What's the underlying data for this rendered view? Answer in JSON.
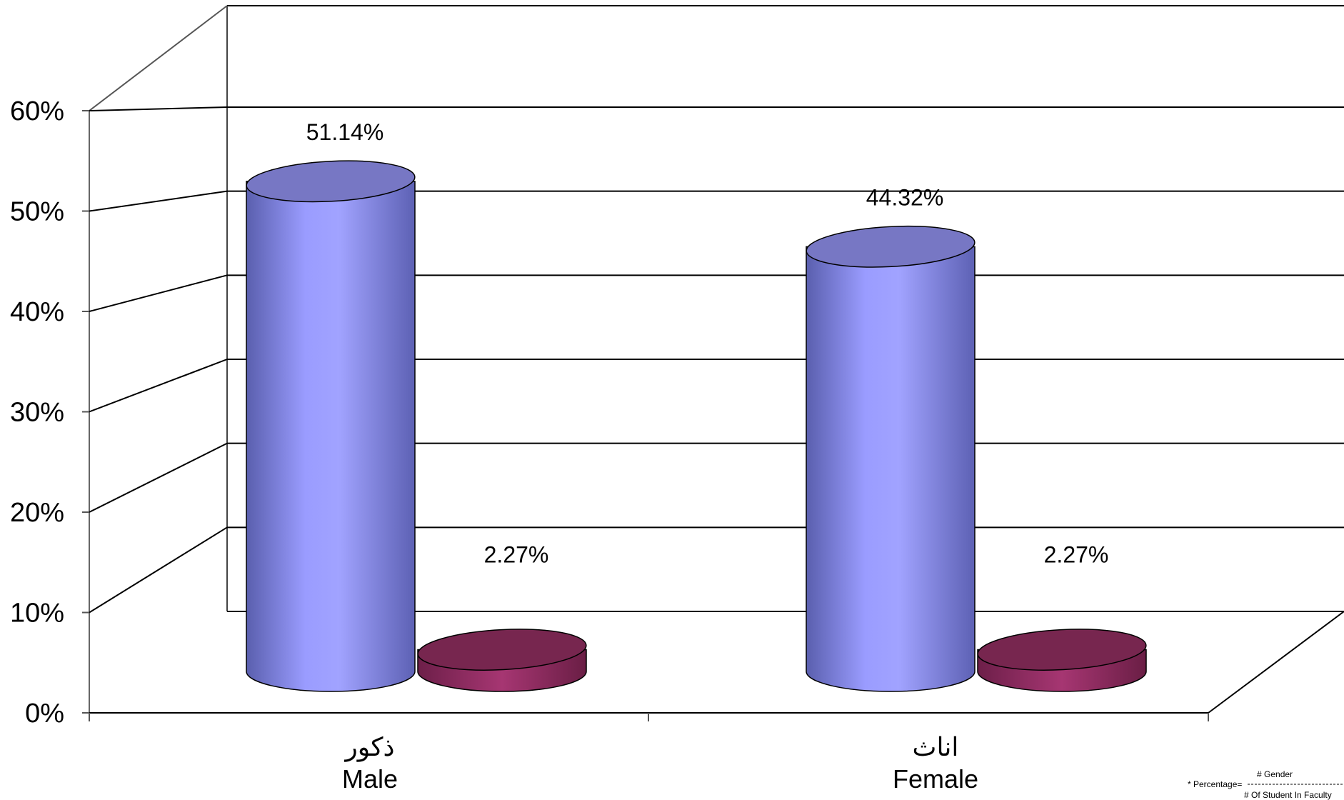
{
  "chart_data": {
    "type": "bar",
    "style": "3d-cylinder",
    "categories": [
      {
        "ar": "ذكور",
        "en": "Male"
      },
      {
        "ar": "اناث",
        "en": "Female"
      }
    ],
    "series": [
      {
        "values": [
          51.14,
          44.32
        ],
        "labels": [
          "51.14%",
          "44.32%"
        ],
        "color": "#9999ff"
      },
      {
        "values": [
          2.27,
          2.27
        ],
        "labels": [
          "2.27%",
          "2.27%"
        ],
        "color": "#993366"
      }
    ],
    "y_ticks": [
      "0%",
      "10%",
      "20%",
      "30%",
      "40%",
      "50%",
      "60%"
    ],
    "ylim": [
      0,
      60
    ],
    "grid": true,
    "footnote": {
      "prefix": "* Percentage=",
      "numerator": "# Gender",
      "denominator": "# Of Student In Faculty"
    }
  }
}
